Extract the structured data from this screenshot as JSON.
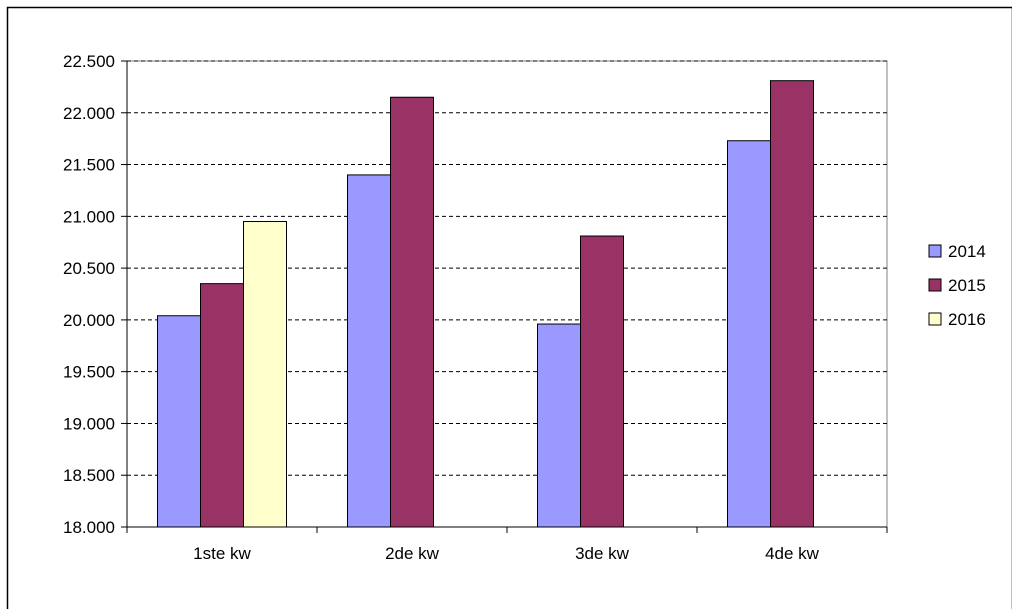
{
  "chart_data": {
    "type": "bar",
    "title": "",
    "xlabel": "",
    "ylabel": "",
    "categories": [
      "1ste kw",
      "2de kw",
      "3de kw",
      "4de kw"
    ],
    "series": [
      {
        "name": "2014",
        "color": "#9999ff",
        "values": [
          20040,
          21400,
          19960,
          21730
        ]
      },
      {
        "name": "2015",
        "color": "#993366",
        "values": [
          20350,
          22150,
          20810,
          22310
        ]
      },
      {
        "name": "2016",
        "color": "#ffffcc",
        "values": [
          20950,
          null,
          null,
          null
        ]
      }
    ],
    "ylim": [
      18000,
      22500
    ],
    "y_ticks": [
      18000,
      18500,
      19000,
      19500,
      20000,
      20500,
      21000,
      21500,
      22000,
      22500
    ],
    "y_tick_labels": [
      "18.000",
      "18.500",
      "19.000",
      "19.500",
      "20.000",
      "20.500",
      "21.000",
      "21.500",
      "22.000",
      "22.500"
    ],
    "grid": true,
    "legend": "right"
  }
}
